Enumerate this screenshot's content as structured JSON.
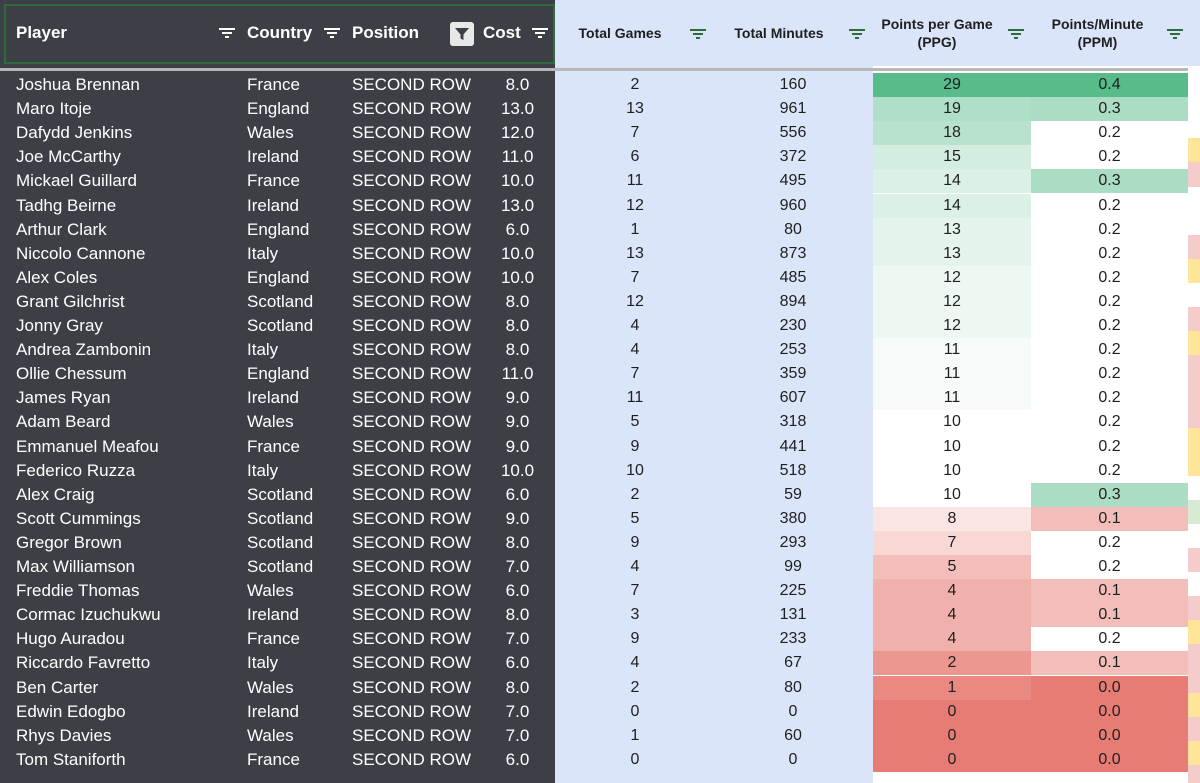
{
  "columns": {
    "player": "Player",
    "country": "Country",
    "position": "Position",
    "cost": "Cost",
    "total_games": "Total Games",
    "total_minutes": "Total Minutes",
    "ppg_line1": "Points per Game",
    "ppg_line2": "(PPG)",
    "ppm_line1": "Points/Minute",
    "ppm_line2": "(PPM)"
  },
  "icons": {
    "filter": "filter-lines-icon",
    "active_filter": "funnel-filled-icon"
  },
  "colors": {
    "dark_panel": "#3c3f45",
    "light_panel": "#dae5fa",
    "header_border": "#2e6b3c",
    "scale_high": "#57bb8a",
    "scale_mid": "#ffffff",
    "scale_low": "#e67c73"
  },
  "rows": [
    {
      "player": "Joshua Brennan",
      "country": "France",
      "position": "SECOND ROW",
      "cost": "8.0",
      "games": "2",
      "minutes": "160",
      "ppg": "29",
      "ppm": "0.4"
    },
    {
      "player": "Maro Itoje",
      "country": "England",
      "position": "SECOND ROW",
      "cost": "13.0",
      "games": "13",
      "minutes": "961",
      "ppg": "19",
      "ppm": "0.3"
    },
    {
      "player": "Dafydd Jenkins",
      "country": "Wales",
      "position": "SECOND ROW",
      "cost": "12.0",
      "games": "7",
      "minutes": "556",
      "ppg": "18",
      "ppm": "0.2"
    },
    {
      "player": "Joe McCarthy",
      "country": "Ireland",
      "position": "SECOND ROW",
      "cost": "11.0",
      "games": "6",
      "minutes": "372",
      "ppg": "15",
      "ppm": "0.2"
    },
    {
      "player": "Mickael Guillard",
      "country": "France",
      "position": "SECOND ROW",
      "cost": "10.0",
      "games": "11",
      "minutes": "495",
      "ppg": "14",
      "ppm": "0.3"
    },
    {
      "player": "Tadhg Beirne",
      "country": "Ireland",
      "position": "SECOND ROW",
      "cost": "13.0",
      "games": "12",
      "minutes": "960",
      "ppg": "14",
      "ppm": "0.2"
    },
    {
      "player": "Arthur Clark",
      "country": "England",
      "position": "SECOND ROW",
      "cost": "6.0",
      "games": "1",
      "minutes": "80",
      "ppg": "13",
      "ppm": "0.2"
    },
    {
      "player": "Niccolo Cannone",
      "country": "Italy",
      "position": "SECOND ROW",
      "cost": "10.0",
      "games": "13",
      "minutes": "873",
      "ppg": "13",
      "ppm": "0.2"
    },
    {
      "player": "Alex Coles",
      "country": "England",
      "position": "SECOND ROW",
      "cost": "10.0",
      "games": "7",
      "minutes": "485",
      "ppg": "12",
      "ppm": "0.2"
    },
    {
      "player": "Grant Gilchrist",
      "country": "Scotland",
      "position": "SECOND ROW",
      "cost": "8.0",
      "games": "12",
      "minutes": "894",
      "ppg": "12",
      "ppm": "0.2"
    },
    {
      "player": "Jonny Gray",
      "country": "Scotland",
      "position": "SECOND ROW",
      "cost": "8.0",
      "games": "4",
      "minutes": "230",
      "ppg": "12",
      "ppm": "0.2"
    },
    {
      "player": "Andrea Zambonin",
      "country": "Italy",
      "position": "SECOND ROW",
      "cost": "8.0",
      "games": "4",
      "minutes": "253",
      "ppg": "11",
      "ppm": "0.2"
    },
    {
      "player": "Ollie Chessum",
      "country": "England",
      "position": "SECOND ROW",
      "cost": "11.0",
      "games": "7",
      "minutes": "359",
      "ppg": "11",
      "ppm": "0.2"
    },
    {
      "player": "James Ryan",
      "country": "Ireland",
      "position": "SECOND ROW",
      "cost": "9.0",
      "games": "11",
      "minutes": "607",
      "ppg": "11",
      "ppm": "0.2"
    },
    {
      "player": "Adam Beard",
      "country": "Wales",
      "position": "SECOND ROW",
      "cost": "9.0",
      "games": "5",
      "minutes": "318",
      "ppg": "10",
      "ppm": "0.2"
    },
    {
      "player": "Emmanuel Meafou",
      "country": "France",
      "position": "SECOND ROW",
      "cost": "9.0",
      "games": "9",
      "minutes": "441",
      "ppg": "10",
      "ppm": "0.2"
    },
    {
      "player": "Federico Ruzza",
      "country": "Italy",
      "position": "SECOND ROW",
      "cost": "10.0",
      "games": "10",
      "minutes": "518",
      "ppg": "10",
      "ppm": "0.2"
    },
    {
      "player": "Alex Craig",
      "country": "Scotland",
      "position": "SECOND ROW",
      "cost": "6.0",
      "games": "2",
      "minutes": "59",
      "ppg": "10",
      "ppm": "0.3"
    },
    {
      "player": "Scott Cummings",
      "country": "Scotland",
      "position": "SECOND ROW",
      "cost": "9.0",
      "games": "5",
      "minutes": "380",
      "ppg": "8",
      "ppm": "0.1"
    },
    {
      "player": "Gregor Brown",
      "country": "Scotland",
      "position": "SECOND ROW",
      "cost": "8.0",
      "games": "9",
      "minutes": "293",
      "ppg": "7",
      "ppm": "0.2"
    },
    {
      "player": "Max Williamson",
      "country": "Scotland",
      "position": "SECOND ROW",
      "cost": "7.0",
      "games": "4",
      "minutes": "99",
      "ppg": "5",
      "ppm": "0.2"
    },
    {
      "player": "Freddie Thomas",
      "country": "Wales",
      "position": "SECOND ROW",
      "cost": "6.0",
      "games": "7",
      "minutes": "225",
      "ppg": "4",
      "ppm": "0.1"
    },
    {
      "player": "Cormac Izuchukwu",
      "country": "Ireland",
      "position": "SECOND ROW",
      "cost": "8.0",
      "games": "3",
      "minutes": "131",
      "ppg": "4",
      "ppm": "0.1"
    },
    {
      "player": "Hugo Auradou",
      "country": "France",
      "position": "SECOND ROW",
      "cost": "7.0",
      "games": "9",
      "minutes": "233",
      "ppg": "4",
      "ppm": "0.2"
    },
    {
      "player": "Riccardo Favretto",
      "country": "Italy",
      "position": "SECOND ROW",
      "cost": "6.0",
      "games": "4",
      "minutes": "67",
      "ppg": "2",
      "ppm": "0.1"
    },
    {
      "player": "Ben Carter",
      "country": "Wales",
      "position": "SECOND ROW",
      "cost": "8.0",
      "games": "2",
      "minutes": "80",
      "ppg": "1",
      "ppm": "0.0"
    },
    {
      "player": "Edwin Edogbo",
      "country": "Ireland",
      "position": "SECOND ROW",
      "cost": "7.0",
      "games": "0",
      "minutes": "0",
      "ppg": "0",
      "ppm": "0.0"
    },
    {
      "player": "Rhys Davies",
      "country": "Wales",
      "position": "SECOND ROW",
      "cost": "7.0",
      "games": "1",
      "minutes": "60",
      "ppg": "0",
      "ppm": "0.0"
    },
    {
      "player": "Tom Staniforth",
      "country": "France",
      "position": "SECOND ROW",
      "cost": "6.0",
      "games": "0",
      "minutes": "0",
      "ppg": "0",
      "ppm": "0.0"
    }
  ]
}
